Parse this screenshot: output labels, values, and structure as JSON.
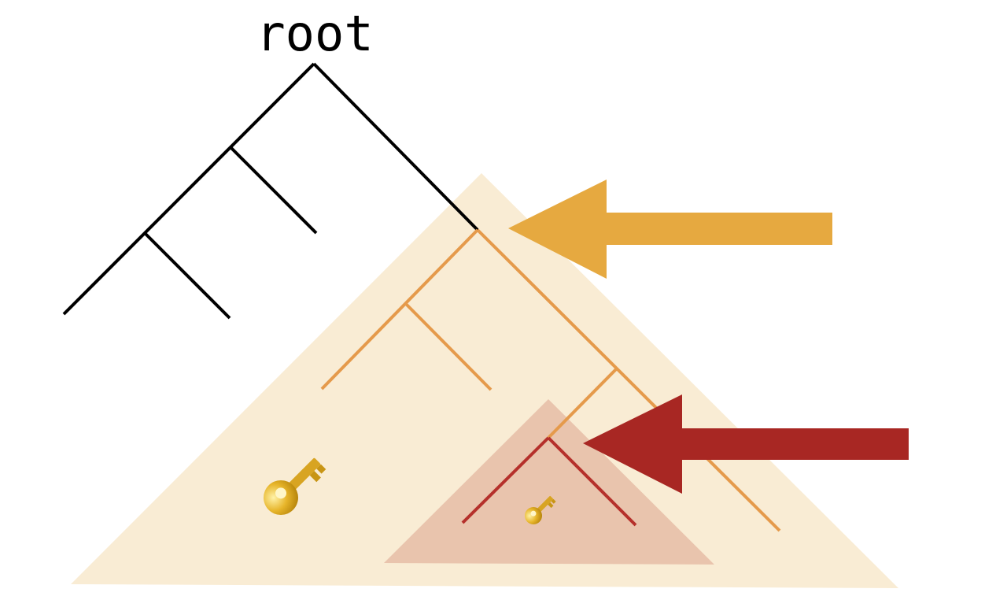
{
  "diagram": {
    "root_label": "root",
    "colors": {
      "background": "#ffffff",
      "root_tree_line": "#000000",
      "outer_subtree_fill": "#f9ecd4",
      "outer_subtree_line": "#e59a4b",
      "inner_subtree_fill": "#e9c4ad",
      "inner_subtree_line": "#b5302b",
      "outer_arrow": "#e6a940",
      "inner_arrow": "#a82723",
      "key_gold": "#e7b52a",
      "key_shade": "#b8860b"
    },
    "icons": {
      "large_key": "key-icon",
      "small_key": "key-icon",
      "outer_pointer": "arrow-left-icon",
      "inner_pointer": "arrow-left-icon"
    }
  }
}
